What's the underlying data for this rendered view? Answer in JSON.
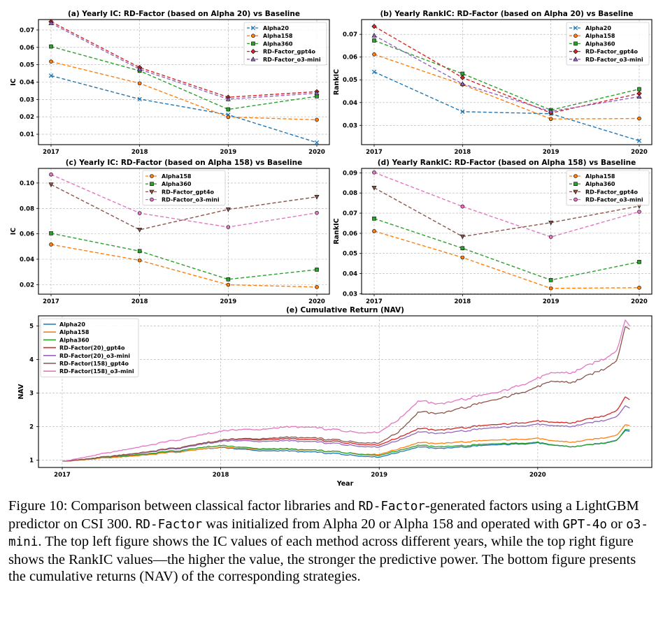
{
  "colors": {
    "Alpha20": "#1f77b4",
    "Alpha158": "#ff7f0e",
    "Alpha360": "#2ca02c",
    "RD-Factor_gpt4o": "#d62728",
    "RD-Factor_o3-mini": "#9467bd",
    "RD-Factor(20)_gpt4o": "#d62728",
    "RD-Factor(20)_o3-mini": "#9467bd",
    "RD-Factor(158)_gpt4o": "#8c564b",
    "RD-Factor(158)_o3-mini": "#e377c2",
    "c_gpt4o": "#8c564b",
    "c_o3mini": "#e377c2"
  },
  "chart_data": [
    {
      "id": "a",
      "type": "line",
      "title": "(a) Yearly IC: RD-Factor (based on Alpha 20) vs Baseline",
      "xlabel": "",
      "ylabel": "IC",
      "x": [
        "2017",
        "2018",
        "2019",
        "2020"
      ],
      "ylim": [
        0.004,
        0.076
      ],
      "yticks": [
        0.01,
        0.02,
        0.03,
        0.04,
        0.05,
        0.06,
        0.07
      ],
      "ytick_labels": [
        "0.01",
        "0.02",
        "0.03",
        "0.04",
        "0.05",
        "0.06",
        "0.07"
      ],
      "legend": "top-right",
      "series": [
        {
          "name": "Alpha20",
          "color_key": "Alpha20",
          "marker": "x",
          "values": [
            0.0437,
            0.0302,
            0.0212,
            0.0052
          ]
        },
        {
          "name": "Alpha158",
          "color_key": "Alpha158",
          "marker": "o",
          "values": [
            0.0518,
            0.0393,
            0.0199,
            0.0183
          ]
        },
        {
          "name": "Alpha360",
          "color_key": "Alpha360",
          "marker": "s",
          "values": [
            0.0605,
            0.0465,
            0.0243,
            0.0318
          ]
        },
        {
          "name": "RD-Factor_gpt4o",
          "color_key": "RD-Factor_gpt4o",
          "marker": "D",
          "values": [
            0.0748,
            0.0484,
            0.0313,
            0.0345
          ]
        },
        {
          "name": "RD-Factor_o3-mini",
          "color_key": "RD-Factor_o3-mini",
          "marker": "^",
          "values": [
            0.0739,
            0.0474,
            0.0302,
            0.0336
          ]
        }
      ]
    },
    {
      "id": "b",
      "type": "line",
      "title": "(b) Yearly RankIC: RD-Factor (based on Alpha 20) vs Baseline",
      "xlabel": "",
      "ylabel": "RankIC",
      "x": [
        "2017",
        "2018",
        "2019",
        "2020"
      ],
      "ylim": [
        0.0215,
        0.0765
      ],
      "yticks": [
        0.03,
        0.04,
        0.05,
        0.06,
        0.07
      ],
      "ytick_labels": [
        "0.03",
        "0.04",
        "0.05",
        "0.06",
        "0.07"
      ],
      "legend": "top-right",
      "series": [
        {
          "name": "Alpha20",
          "color_key": "Alpha20",
          "marker": "x",
          "values": [
            0.0535,
            0.036,
            0.0351,
            0.0232
          ]
        },
        {
          "name": "Alpha158",
          "color_key": "Alpha158",
          "marker": "o",
          "values": [
            0.0612,
            0.0479,
            0.0328,
            0.033
          ]
        },
        {
          "name": "Alpha360",
          "color_key": "Alpha360",
          "marker": "s",
          "values": [
            0.0673,
            0.0527,
            0.0367,
            0.0459
          ]
        },
        {
          "name": "RD-Factor_gpt4o",
          "color_key": "RD-Factor_gpt4o",
          "marker": "D",
          "values": [
            0.0735,
            0.051,
            0.0354,
            0.044
          ]
        },
        {
          "name": "RD-Factor_o3-mini",
          "color_key": "RD-Factor_o3-mini",
          "marker": "^",
          "values": [
            0.0695,
            0.0482,
            0.0361,
            0.0426
          ]
        }
      ]
    },
    {
      "id": "c",
      "type": "line",
      "title": "(c) Yearly IC: RD-Factor (based on Alpha 158) vs Baseline",
      "xlabel": "",
      "ylabel": "IC",
      "x": [
        "2017",
        "2018",
        "2019",
        "2020"
      ],
      "ylim": [
        0.0125,
        0.1115
      ],
      "yticks": [
        0.02,
        0.04,
        0.06,
        0.08,
        0.1
      ],
      "ytick_labels": [
        "0.02",
        "0.04",
        "0.06",
        "0.08",
        "0.10"
      ],
      "legend": "top-center",
      "series": [
        {
          "name": "Alpha158",
          "color_key": "Alpha158",
          "marker": "o",
          "values": [
            0.0516,
            0.0391,
            0.0199,
            0.0181
          ]
        },
        {
          "name": "Alpha360",
          "color_key": "Alpha360",
          "marker": "s",
          "values": [
            0.0604,
            0.0464,
            0.0242,
            0.0318
          ]
        },
        {
          "name": "RD-Factor_gpt4o",
          "color_key": "c_gpt4o",
          "marker": "v",
          "values": [
            0.0988,
            0.0632,
            0.0792,
            0.0891
          ]
        },
        {
          "name": "RD-Factor_o3-mini",
          "color_key": "c_o3mini",
          "marker": "o",
          "values": [
            0.1067,
            0.0763,
            0.0653,
            0.0765
          ]
        }
      ]
    },
    {
      "id": "d",
      "type": "line",
      "title": "(d) Yearly RankIC: RD-Factor (based on Alpha 158) vs Baseline",
      "xlabel": "",
      "ylabel": "RankIC",
      "x": [
        "2017",
        "2018",
        "2019",
        "2020"
      ],
      "ylim": [
        0.0298,
        0.0922
      ],
      "yticks": [
        0.03,
        0.04,
        0.05,
        0.06,
        0.07,
        0.08,
        0.09
      ],
      "ytick_labels": [
        "0.03",
        "0.04",
        "0.05",
        "0.06",
        "0.07",
        "0.08",
        "0.09"
      ],
      "legend": "top-right",
      "series": [
        {
          "name": "Alpha158",
          "color_key": "Alpha158",
          "marker": "o",
          "values": [
            0.0611,
            0.048,
            0.0327,
            0.033
          ]
        },
        {
          "name": "Alpha360",
          "color_key": "Alpha360",
          "marker": "s",
          "values": [
            0.0673,
            0.0526,
            0.0368,
            0.0458
          ]
        },
        {
          "name": "RD-Factor_gpt4o",
          "color_key": "c_gpt4o",
          "marker": "v",
          "values": [
            0.0826,
            0.0584,
            0.0653,
            0.0735
          ]
        },
        {
          "name": "RD-Factor_o3-mini",
          "color_key": "c_o3mini",
          "marker": "o",
          "values": [
            0.0902,
            0.0733,
            0.0582,
            0.0707
          ]
        }
      ]
    },
    {
      "id": "e",
      "type": "line",
      "title": "(e) Cumulative Return (NAV)",
      "xlabel": "Year",
      "ylabel": "NAV",
      "x_range": [
        2016.85,
        2020.72
      ],
      "xticks": [
        2017,
        2018,
        2019,
        2020
      ],
      "xtick_labels": [
        "2017",
        "2018",
        "2019",
        "2020"
      ],
      "ylim": [
        0.78,
        5.3
      ],
      "yticks": [
        1,
        2,
        3,
        4,
        5
      ],
      "ytick_labels": [
        "1",
        "2",
        "3",
        "4",
        "5"
      ],
      "legend": "top-left",
      "series": [
        {
          "name": "Alpha20",
          "color_key": "Alpha20",
          "x": [
            2017.0,
            2017.25,
            2017.5,
            2017.75,
            2018.0,
            2018.08,
            2018.25,
            2018.5,
            2018.75,
            2018.9,
            2019.0,
            2019.12,
            2019.25,
            2019.4,
            2019.5,
            2019.75,
            2020.0,
            2020.08,
            2020.25,
            2020.4,
            2020.5,
            2020.55,
            2020.58
          ],
          "values": [
            0.97,
            1.06,
            1.15,
            1.26,
            1.37,
            1.34,
            1.29,
            1.26,
            1.19,
            1.12,
            1.08,
            1.23,
            1.4,
            1.35,
            1.38,
            1.45,
            1.52,
            1.43,
            1.4,
            1.49,
            1.61,
            1.85,
            1.86
          ]
        },
        {
          "name": "Alpha158",
          "color_key": "Alpha158",
          "x": [
            2017.0,
            2017.25,
            2017.5,
            2017.75,
            2018.0,
            2018.08,
            2018.25,
            2018.5,
            2018.75,
            2018.9,
            2019.0,
            2019.12,
            2019.25,
            2019.4,
            2019.5,
            2019.75,
            2020.0,
            2020.08,
            2020.25,
            2020.4,
            2020.5,
            2020.55,
            2020.58
          ],
          "values": [
            0.97,
            1.05,
            1.14,
            1.25,
            1.38,
            1.36,
            1.33,
            1.31,
            1.25,
            1.18,
            1.16,
            1.33,
            1.53,
            1.5,
            1.53,
            1.59,
            1.66,
            1.56,
            1.54,
            1.64,
            1.76,
            2.02,
            2.03
          ]
        },
        {
          "name": "Alpha360",
          "color_key": "Alpha360",
          "x": [
            2017.0,
            2017.25,
            2017.5,
            2017.75,
            2018.0,
            2018.08,
            2018.25,
            2018.5,
            2018.75,
            2018.9,
            2019.0,
            2019.12,
            2019.25,
            2019.4,
            2019.5,
            2019.75,
            2020.0,
            2020.08,
            2020.25,
            2020.4,
            2020.5,
            2020.55,
            2020.58
          ],
          "values": [
            0.97,
            1.07,
            1.17,
            1.29,
            1.43,
            1.4,
            1.35,
            1.32,
            1.25,
            1.17,
            1.13,
            1.28,
            1.45,
            1.4,
            1.42,
            1.48,
            1.54,
            1.44,
            1.4,
            1.48,
            1.6,
            1.88,
            1.9
          ]
        },
        {
          "name": "RD-Factor(20)_gpt4o",
          "color_key": "RD-Factor(20)_gpt4o",
          "x": [
            2017.0,
            2017.25,
            2017.5,
            2017.75,
            2018.0,
            2018.08,
            2018.25,
            2018.5,
            2018.75,
            2018.9,
            2019.0,
            2019.12,
            2019.25,
            2019.4,
            2019.5,
            2019.75,
            2020.0,
            2020.08,
            2020.25,
            2020.4,
            2020.5,
            2020.55,
            2020.58
          ],
          "values": [
            0.97,
            1.08,
            1.22,
            1.38,
            1.58,
            1.62,
            1.62,
            1.63,
            1.55,
            1.47,
            1.44,
            1.67,
            1.95,
            1.9,
            1.95,
            2.05,
            2.18,
            2.1,
            2.13,
            2.28,
            2.5,
            2.84,
            2.8
          ]
        },
        {
          "name": "RD-Factor(20)_o3-mini",
          "color_key": "RD-Factor(20)_o3-mini",
          "x": [
            2017.0,
            2017.25,
            2017.5,
            2017.75,
            2018.0,
            2018.08,
            2018.25,
            2018.5,
            2018.75,
            2018.9,
            2019.0,
            2019.12,
            2019.25,
            2019.4,
            2019.5,
            2019.75,
            2020.0,
            2020.08,
            2020.25,
            2020.4,
            2020.5,
            2020.55,
            2020.58
          ],
          "values": [
            0.97,
            1.08,
            1.21,
            1.36,
            1.55,
            1.58,
            1.57,
            1.57,
            1.49,
            1.41,
            1.38,
            1.59,
            1.85,
            1.8,
            1.85,
            1.96,
            2.08,
            2.0,
            2.02,
            2.15,
            2.32,
            2.58,
            2.55
          ]
        },
        {
          "name": "RD-Factor(158)_gpt4o",
          "color_key": "RD-Factor(158)_gpt4o",
          "x": [
            2017.0,
            2017.25,
            2017.5,
            2017.75,
            2018.0,
            2018.08,
            2018.25,
            2018.5,
            2018.75,
            2018.9,
            2019.0,
            2019.12,
            2019.25,
            2019.4,
            2019.5,
            2019.75,
            2020.0,
            2020.08,
            2020.25,
            2020.4,
            2020.5,
            2020.55,
            2020.58
          ],
          "values": [
            0.97,
            1.08,
            1.22,
            1.38,
            1.58,
            1.63,
            1.65,
            1.68,
            1.6,
            1.52,
            1.5,
            1.83,
            2.45,
            2.4,
            2.52,
            2.8,
            3.2,
            3.3,
            3.35,
            3.65,
            4.0,
            4.9,
            4.9
          ]
        },
        {
          "name": "RD-Factor(158)_o3-mini",
          "color_key": "RD-Factor(158)_o3-mini",
          "x": [
            2017.0,
            2017.25,
            2017.5,
            2017.75,
            2018.0,
            2018.08,
            2018.25,
            2018.5,
            2018.75,
            2018.9,
            2019.0,
            2019.12,
            2019.25,
            2019.4,
            2019.5,
            2019.75,
            2020.0,
            2020.08,
            2020.25,
            2020.4,
            2020.5,
            2020.55,
            2020.58
          ],
          "values": [
            0.97,
            1.18,
            1.4,
            1.62,
            1.85,
            1.9,
            1.93,
            2.0,
            1.9,
            1.82,
            1.82,
            2.2,
            2.78,
            2.68,
            2.78,
            3.0,
            3.45,
            3.55,
            3.65,
            3.95,
            4.3,
            5.1,
            5.0
          ]
        }
      ]
    }
  ],
  "caption": {
    "p1": "Figure 10: Comparison between classical factor libraries and ",
    "m1": "RD-Factor",
    "p2": "-generated factors using a LightGBM predictor on CSI 300. ",
    "m2": "RD-Factor",
    "p3": " was initialized from Alpha 20 or Alpha 158 and operated with ",
    "m3": "GPT-4o",
    "p4": " or ",
    "m4": "o3-mini",
    "p5": ". The top left figure shows the IC values of each method across different years, while the top right figure shows the RankIC values—the higher the value, the stronger the predictive power. The bottom figure presents the cumulative returns (NAV) of the corresponding strategies."
  }
}
